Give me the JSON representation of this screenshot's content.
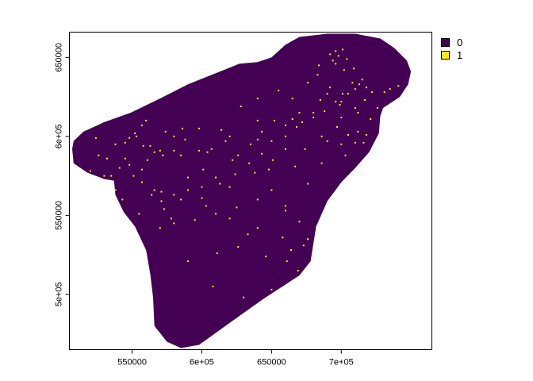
{
  "chart_data": {
    "type": "heatmap",
    "title": "",
    "xlabel": "",
    "ylabel": "",
    "xlim": [
      505000,
      765000
    ],
    "ylim": [
      465000,
      666000
    ],
    "x_ticks": [
      {
        "value": 550000,
        "label": "550000"
      },
      {
        "value": 600000,
        "label": "6e+05"
      },
      {
        "value": 650000,
        "label": "650000"
      },
      {
        "value": 700000,
        "label": "7e+05"
      }
    ],
    "y_ticks": [
      {
        "value": 500000,
        "label": "5e+05"
      },
      {
        "value": 550000,
        "label": "550000"
      },
      {
        "value": 600000,
        "label": "6e+05"
      },
      {
        "value": 650000,
        "label": "650000"
      }
    ],
    "legend_placement": "top-right",
    "classes": [
      {
        "value": "0",
        "label": "0",
        "color": "#440154"
      },
      {
        "value": "1",
        "label": "1",
        "color": "#FDE725"
      }
    ],
    "extent_outline": [
      [
        507000,
        592000
      ],
      [
        508000,
        583000
      ],
      [
        518000,
        577000
      ],
      [
        530000,
        573000
      ],
      [
        537000,
        572000
      ],
      [
        538000,
        563000
      ],
      [
        544000,
        552000
      ],
      [
        552000,
        543000
      ],
      [
        560000,
        528000
      ],
      [
        563000,
        513000
      ],
      [
        565000,
        498000
      ],
      [
        566000,
        480000
      ],
      [
        575000,
        470000
      ],
      [
        585000,
        466000
      ],
      [
        598000,
        468000
      ],
      [
        620000,
        482000
      ],
      [
        644000,
        497000
      ],
      [
        670000,
        512000
      ],
      [
        678000,
        521000
      ],
      [
        682000,
        543000
      ],
      [
        690000,
        559000
      ],
      [
        700000,
        571000
      ],
      [
        710000,
        580000
      ],
      [
        720000,
        590000
      ],
      [
        727000,
        602000
      ],
      [
        728000,
        613000
      ],
      [
        730000,
        618000
      ],
      [
        742000,
        625000
      ],
      [
        748000,
        633000
      ],
      [
        750000,
        641000
      ],
      [
        747000,
        648000
      ],
      [
        738000,
        656000
      ],
      [
        728000,
        662000
      ],
      [
        710000,
        665000
      ],
      [
        690000,
        665000
      ],
      [
        670000,
        663000
      ],
      [
        660000,
        658000
      ],
      [
        650000,
        650000
      ],
      [
        640000,
        647000
      ],
      [
        627000,
        646000
      ],
      [
        610000,
        640000
      ],
      [
        590000,
        633000
      ],
      [
        570000,
        624000
      ],
      [
        549000,
        615000
      ],
      [
        530000,
        609000
      ],
      [
        515000,
        603000
      ],
      [
        508000,
        597000
      ]
    ],
    "class1_cells": [
      [
        524,
        599
      ],
      [
        538,
        595
      ],
      [
        545,
        596
      ],
      [
        548,
        599
      ],
      [
        552,
        602
      ],
      [
        558,
        594
      ],
      [
        561,
        585
      ],
      [
        566,
        590
      ],
      [
        570,
        591
      ],
      [
        580,
        591
      ],
      [
        585,
        588
      ],
      [
        598,
        591
      ],
      [
        607,
        592
      ],
      [
        620,
        600
      ],
      [
        635,
        595
      ],
      [
        640,
        598
      ],
      [
        660,
        607
      ],
      [
        665,
        611
      ],
      [
        672,
        609
      ],
      [
        680,
        612
      ],
      [
        688,
        616
      ],
      [
        699,
        620
      ],
      [
        700,
        622
      ],
      [
        705,
        627
      ],
      [
        710,
        630
      ],
      [
        713,
        633
      ],
      [
        718,
        631
      ],
      [
        722,
        628
      ],
      [
        708,
        634
      ],
      [
        690,
        627
      ],
      [
        680,
        615
      ],
      [
        668,
        606
      ],
      [
        660,
        600
      ],
      [
        650,
        597
      ],
      [
        643,
        589
      ],
      [
        634,
        583
      ],
      [
        624,
        576
      ],
      [
        613,
        570
      ],
      [
        600,
        568
      ],
      [
        590,
        566
      ],
      [
        580,
        563
      ],
      [
        571,
        559
      ],
      [
        564,
        563
      ],
      [
        557,
        571
      ],
      [
        551,
        575
      ],
      [
        548,
        582
      ],
      [
        541,
        580
      ],
      [
        535,
        575
      ],
      [
        530,
        575
      ],
      [
        520,
        578
      ],
      [
        526,
        588
      ],
      [
        532,
        586
      ],
      [
        545,
        586
      ],
      [
        557,
        579
      ],
      [
        566,
        566
      ],
      [
        573,
        554
      ],
      [
        580,
        545
      ],
      [
        595,
        547
      ],
      [
        610,
        551
      ],
      [
        625,
        555
      ],
      [
        640,
        560
      ],
      [
        660,
        556
      ],
      [
        670,
        546
      ],
      [
        676,
        535
      ],
      [
        673,
        531
      ],
      [
        658,
        536
      ],
      [
        640,
        542
      ],
      [
        620,
        548
      ],
      [
        603,
        556
      ],
      [
        590,
        574
      ],
      [
        622,
        585
      ],
      [
        650,
        566
      ],
      [
        705,
        601
      ],
      [
        696,
        622
      ],
      [
        701,
        627
      ],
      [
        717,
        623
      ],
      [
        731,
        628
      ],
      [
        726,
        618
      ],
      [
        712,
        615
      ],
      [
        700,
        612
      ],
      [
        574,
        603
      ],
      [
        586,
        605
      ],
      [
        598,
        605
      ],
      [
        614,
        604
      ],
      [
        628,
        619
      ],
      [
        640,
        624
      ],
      [
        655,
        629
      ],
      [
        676,
        634
      ],
      [
        684,
        645
      ],
      [
        692,
        652
      ],
      [
        694,
        648
      ],
      [
        696,
        654
      ],
      [
        696,
        646
      ],
      [
        698,
        651
      ],
      [
        701,
        655
      ],
      [
        704,
        649
      ],
      [
        709,
        643
      ],
      [
        715,
        636
      ],
      [
        702,
        642
      ],
      [
        692,
        631
      ],
      [
        685,
        623
      ],
      [
        670,
        615
      ],
      [
        652,
        610
      ],
      [
        665,
        624
      ],
      [
        683,
        639
      ],
      [
        710,
        618
      ],
      [
        735,
        630
      ],
      [
        741,
        632
      ],
      [
        572,
        588
      ],
      [
        563,
        594
      ],
      [
        580,
        600
      ],
      [
        588,
        598
      ],
      [
        604,
        590
      ],
      [
        617,
        597
      ],
      [
        638,
        577
      ],
      [
        648,
        579
      ],
      [
        667,
        581
      ],
      [
        686,
        583
      ],
      [
        703,
        588
      ],
      [
        716,
        596
      ],
      [
        664,
        528
      ],
      [
        661,
        521
      ],
      [
        578,
        548
      ],
      [
        543,
        560
      ],
      [
        538,
        566
      ],
      [
        555,
        551
      ],
      [
        570,
        542
      ],
      [
        590,
        521
      ],
      [
        608,
        505
      ],
      [
        630,
        498
      ],
      [
        650,
        503
      ],
      [
        669,
        515
      ],
      [
        611,
        526
      ],
      [
        626,
        530
      ],
      [
        633,
        538
      ],
      [
        646,
        524
      ],
      [
        660,
        553
      ],
      [
        620,
        568
      ],
      [
        601,
        579
      ],
      [
        651,
        585
      ],
      [
        686,
        600
      ],
      [
        674,
        592
      ],
      [
        697,
        606
      ],
      [
        640,
        610
      ],
      [
        560,
        610
      ],
      [
        557,
        607
      ],
      [
        553,
        600
      ],
      [
        571,
        565
      ],
      [
        585,
        560
      ],
      [
        600,
        561
      ],
      [
        610,
        574
      ],
      [
        626,
        588
      ],
      [
        643,
        603
      ],
      [
        660,
        592
      ],
      [
        676,
        570
      ],
      [
        690,
        597
      ],
      [
        712,
        603
      ],
      [
        721,
        611
      ],
      [
        718,
        601
      ],
      [
        710,
        596
      ],
      [
        700,
        595
      ]
    ]
  }
}
